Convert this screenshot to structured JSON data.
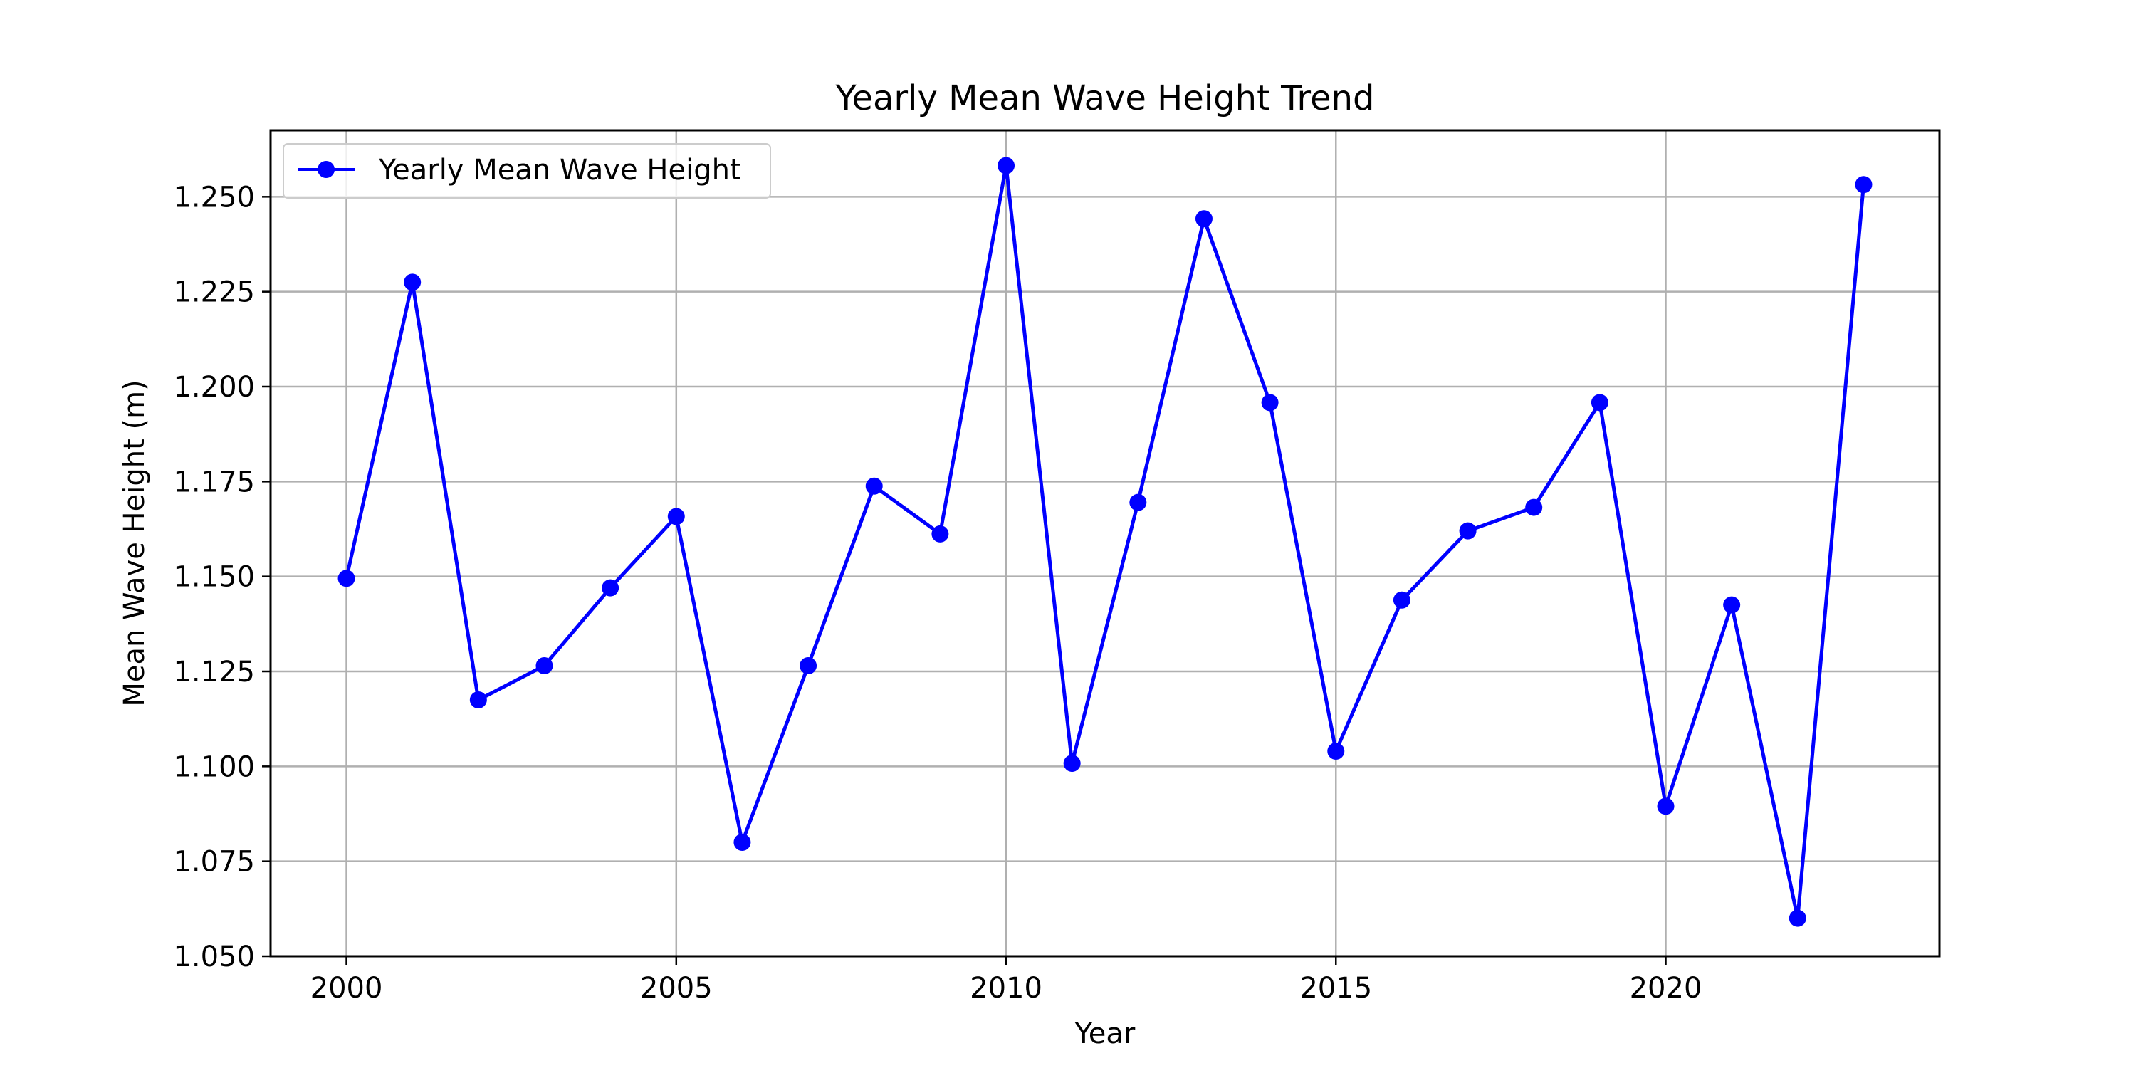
{
  "chart_data": {
    "type": "line",
    "title": "Yearly Mean Wave Height Trend",
    "xlabel": "Year",
    "ylabel": "Mean Wave Height (m)",
    "x": [
      2000,
      2001,
      2002,
      2003,
      2004,
      2005,
      2006,
      2007,
      2008,
      2009,
      2010,
      2011,
      2012,
      2013,
      2014,
      2015,
      2016,
      2017,
      2018,
      2019,
      2020,
      2021,
      2022,
      2023
    ],
    "series": [
      {
        "name": "Yearly Mean Wave Height",
        "color": "#0000ff",
        "marker": "circle",
        "values": [
          1.1495,
          1.2275,
          1.1175,
          1.1265,
          1.147,
          1.1658,
          1.08,
          1.1265,
          1.1738,
          1.1612,
          1.2582,
          1.1008,
          1.1695,
          1.2442,
          1.1958,
          1.104,
          1.1438,
          1.162,
          1.1682,
          1.1958,
          1.0895,
          1.1425,
          1.06,
          1.2532
        ]
      }
    ],
    "xlim": [
      1998.85,
      2024.15
    ],
    "ylim": [
      1.05,
      1.2675
    ],
    "xticks": [
      2000,
      2005,
      2010,
      2015,
      2020
    ],
    "yticks": [
      1.05,
      1.075,
      1.1,
      1.125,
      1.15,
      1.175,
      1.2,
      1.225,
      1.25
    ],
    "ytick_labels": [
      "1.050",
      "1.075",
      "1.100",
      "1.125",
      "1.150",
      "1.175",
      "1.200",
      "1.225",
      "1.250"
    ],
    "grid": true,
    "legend_position": "top-left"
  }
}
